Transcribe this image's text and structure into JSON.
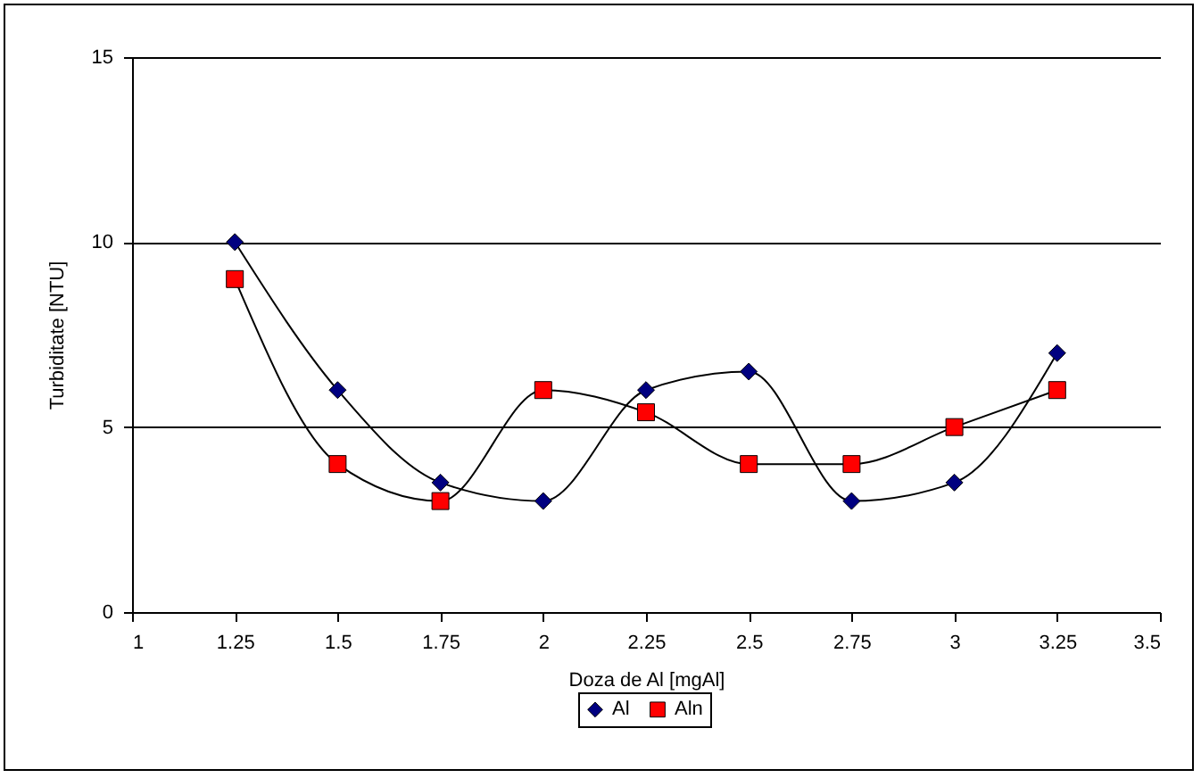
{
  "chart_data": {
    "type": "line",
    "xlabel": "Doza de Al [mgAl]",
    "ylabel": "Turbiditate [NTU]",
    "x": [
      1.25,
      1.5,
      1.75,
      2,
      2.25,
      2.5,
      2.75,
      3,
      3.25
    ],
    "series": [
      {
        "name": "Al",
        "color": "#000080",
        "marker": "diamond",
        "values": [
          10,
          6,
          3.5,
          3,
          6,
          6.5,
          3,
          3.5,
          7
        ]
      },
      {
        "name": "Aln",
        "color": "#ff0000",
        "marker": "square",
        "values": [
          9,
          4,
          3,
          6,
          5.4,
          4,
          4,
          5,
          6
        ]
      }
    ],
    "xlim": [
      1,
      3.5
    ],
    "xticks": [
      1,
      1.25,
      1.5,
      1.75,
      2,
      2.25,
      2.5,
      2.75,
      3,
      3.25,
      3.5
    ],
    "ylim": [
      0,
      15
    ],
    "yticks": [
      0,
      5,
      10,
      15
    ],
    "grid": "y",
    "legend": "bottom",
    "line_style": "solid"
  }
}
